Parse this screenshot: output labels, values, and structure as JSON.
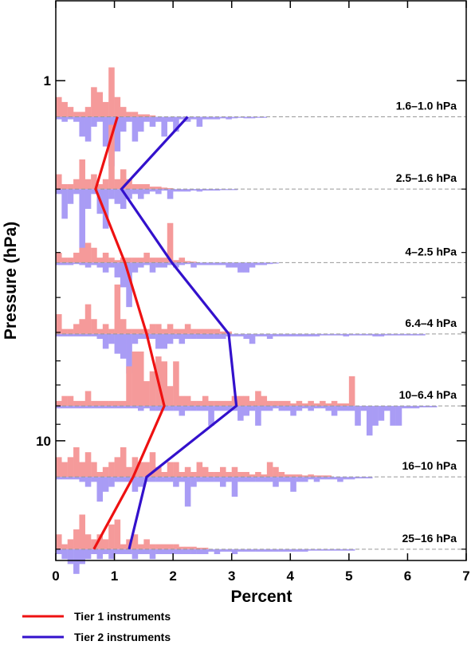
{
  "chart_data": {
    "type": "bar",
    "xlabel": "Percent",
    "ylabel": "Pressure (hPa)",
    "xlim": [
      0,
      7
    ],
    "x_ticks": [
      "0",
      "1",
      "2",
      "3",
      "4",
      "5",
      "6",
      "7"
    ],
    "y_scale": "log",
    "ylim": [
      0.6,
      21.5
    ],
    "y_tick_labels": [
      {
        "value": 1,
        "label": "1"
      },
      {
        "value": 10,
        "label": "10"
      }
    ],
    "y_minor_ticks": [
      2,
      3,
      4,
      5,
      6,
      7,
      8,
      9,
      20
    ],
    "grid": false,
    "legend_position": "bottom-left",
    "colors": {
      "tier1_line": "#ee1111",
      "tier2_line": "#3311cc",
      "tier1_hist": "#f59a9a",
      "tier2_hist": "#a99cf5",
      "baseline": "#999999"
    },
    "bands": [
      {
        "label": "1.6–1.0 hPa",
        "level": 1.26,
        "tier1_hist": [
          4,
          3,
          2,
          1,
          1,
          2,
          6,
          5,
          3,
          10,
          4,
          2,
          1,
          1,
          0.5,
          0.5,
          0.3
        ],
        "tier2_hist": [
          0.5,
          1,
          0.5,
          1,
          4,
          5,
          2,
          1,
          6,
          10,
          7,
          3,
          1,
          5,
          3,
          1,
          2,
          1,
          4,
          1,
          3,
          0.5,
          1,
          0.5,
          2,
          0.5,
          0.5,
          0.5,
          0.3,
          0.5,
          0.3,
          0.2,
          0.3,
          0.3,
          0.2,
          0.2
        ]
      },
      {
        "label": "2.5–1.6 hPa",
        "level": 2.0,
        "tier1_hist": [
          3,
          1,
          1,
          2,
          6,
          2,
          3,
          1,
          2,
          13,
          2,
          4,
          2,
          1,
          1,
          1,
          0.5,
          0.5,
          0.3,
          0.2
        ],
        "tier2_hist": [
          1,
          6,
          3,
          1,
          12,
          4,
          1,
          5,
          8,
          2,
          3,
          4,
          2,
          1,
          2,
          1,
          0.5,
          1,
          0.3,
          2,
          0.5,
          0.5,
          0.5,
          0.3,
          0.5,
          0.3,
          0.3,
          0.3,
          0.2,
          0.2,
          0.2
        ]
      },
      {
        "label": "4–2.5 hPa",
        "level": 3.2,
        "tier1_hist": [
          2,
          1,
          1,
          2,
          3,
          4,
          3,
          1,
          2,
          1,
          0.5,
          1,
          1,
          1,
          1,
          2,
          1,
          1,
          1,
          8,
          0.5,
          1,
          0.3,
          0.2
        ],
        "tier2_hist": [
          0.5,
          0.5,
          0.5,
          0.3,
          0.5,
          1,
          0.5,
          1,
          2,
          1,
          3,
          5,
          9,
          2,
          1,
          0.5,
          2,
          1,
          1,
          0.5,
          1,
          0.5,
          0.3,
          1,
          0.5,
          0.5,
          0.5,
          0.5,
          0.5,
          1,
          1,
          2,
          2,
          1,
          0.5,
          0.5,
          0.3,
          0.2
        ]
      },
      {
        "label": "6.4–4 hPa",
        "level": 5.05,
        "tier1_hist": [
          4,
          1,
          1,
          2,
          3,
          6,
          3,
          1,
          2,
          1,
          10,
          3,
          1,
          1,
          1,
          1,
          2,
          2,
          1,
          2,
          1,
          1,
          2,
          1,
          1,
          1,
          1,
          1,
          0.5,
          0.5
        ],
        "tier2_hist": [
          0.5,
          0.5,
          0.5,
          0.5,
          0.5,
          0.5,
          0.5,
          1,
          3,
          2,
          4,
          5,
          8,
          2,
          1,
          1,
          1,
          3,
          3,
          2,
          1,
          2,
          1,
          1,
          1,
          1,
          1,
          1,
          1,
          0.5,
          0.5,
          0.5,
          1,
          2,
          0.5,
          0.5,
          1,
          0.5,
          0.5,
          0.5,
          0.5,
          0.5,
          0.5,
          0.5,
          0.5,
          0.3,
          0.3,
          0.3,
          0.3,
          0.5,
          0.3,
          0.3,
          0.3,
          0.3,
          0.5,
          0.5,
          0.3,
          0.3,
          0.3,
          0.3,
          0.3,
          0.3,
          0.3
        ]
      },
      {
        "label": "10–6.4 hPa",
        "level": 8.0,
        "tier1_hist": [
          1,
          2,
          2,
          1,
          1,
          3,
          1,
          1,
          1,
          1,
          1,
          1,
          8,
          11,
          11,
          5,
          7,
          10,
          9,
          4,
          9,
          2,
          2,
          1,
          1,
          2,
          1,
          1,
          1,
          1,
          2,
          2,
          2,
          1,
          3,
          2,
          1,
          1,
          1,
          1,
          0.5,
          1,
          0.5,
          1,
          0.5,
          1,
          0.5,
          1,
          0.5,
          0.5,
          6
        ],
        "tier2_hist": [
          0.5,
          0.5,
          0.5,
          0.5,
          0.5,
          0.5,
          0.5,
          0.5,
          0.5,
          0.5,
          0.5,
          0.5,
          0.5,
          0.5,
          1,
          0.5,
          1,
          1,
          1,
          1,
          1,
          2,
          1,
          1,
          1,
          1,
          4,
          1,
          1,
          1,
          1,
          3,
          2,
          1,
          4,
          1,
          1,
          0.5,
          1,
          1,
          2,
          1,
          0.5,
          1,
          0.5,
          0.5,
          1,
          2,
          1,
          1,
          1,
          4,
          1,
          6,
          4,
          3,
          1,
          4,
          4,
          0.5,
          0.5,
          0.5,
          0.3,
          0.3,
          0.3
        ]
      },
      {
        "label": "16–10 hPa",
        "level": 12.6,
        "tier1_hist": [
          4,
          3,
          4,
          6,
          3,
          5,
          3,
          1,
          2,
          3,
          4,
          6,
          2,
          4,
          3,
          3,
          5,
          2,
          1,
          3,
          3,
          1,
          2,
          1,
          3,
          2,
          1,
          1,
          2,
          1,
          2,
          1,
          1,
          0.5,
          1,
          0.5,
          3,
          2,
          1,
          0.5,
          0.5,
          0.5,
          0.3,
          0.5,
          0.3,
          0.3,
          0.3
        ],
        "tier2_hist": [
          0.5,
          0.5,
          0.5,
          0.5,
          1,
          2,
          1,
          5,
          3,
          2,
          1,
          1,
          1,
          3,
          2,
          1,
          1,
          1,
          1,
          1,
          2,
          1,
          6,
          2,
          1,
          1,
          1,
          1,
          2,
          1,
          4,
          1,
          1,
          1,
          1,
          1,
          1,
          2,
          1,
          1,
          3,
          1,
          1,
          0.5,
          1,
          0.5,
          0.5,
          0.5,
          1,
          0.5,
          0.5,
          0.3,
          0.3,
          0.3
        ]
      },
      {
        "label": "25–16 hPa",
        "level": 20.0,
        "tier1_hist": [
          3,
          1,
          2,
          4,
          7,
          3,
          2,
          3,
          2,
          5,
          6,
          1,
          2,
          3,
          1,
          2,
          1,
          1,
          1,
          1,
          1,
          0.5,
          0.5,
          0.5,
          0.3,
          0.3
        ],
        "tier2_hist": [
          1,
          2,
          3,
          5,
          3,
          2,
          1,
          2,
          1,
          2,
          1,
          1,
          1,
          2,
          1,
          1,
          2,
          1,
          1,
          1,
          1,
          1,
          1,
          1,
          1,
          1,
          0.5,
          1,
          0.5,
          0.5,
          1,
          0.5,
          0.5,
          0.5,
          0.5,
          0.5,
          0.5,
          0.5,
          0.5,
          0.5,
          0.5,
          0.5,
          0.5,
          0.3,
          0.3,
          0.3,
          0.3,
          0.3,
          0.3,
          0.3,
          0.3
        ]
      }
    ],
    "series": [
      {
        "name": "Tier 1 instruments",
        "points": [
          {
            "x": 1.05,
            "y": 1.26
          },
          {
            "x": 0.68,
            "y": 2.0
          },
          {
            "x": 1.18,
            "y": 3.2
          },
          {
            "x": 1.55,
            "y": 5.05
          },
          {
            "x": 1.85,
            "y": 8.0
          },
          {
            "x": 1.32,
            "y": 12.6
          },
          {
            "x": 0.65,
            "y": 20.0
          }
        ]
      },
      {
        "name": "Tier 2 instruments",
        "points": [
          {
            "x": 2.25,
            "y": 1.26
          },
          {
            "x": 1.12,
            "y": 2.0
          },
          {
            "x": 1.98,
            "y": 3.2
          },
          {
            "x": 2.95,
            "y": 5.05
          },
          {
            "x": 3.08,
            "y": 8.0
          },
          {
            "x": 1.55,
            "y": 12.6
          },
          {
            "x": 1.25,
            "y": 20.0
          }
        ]
      }
    ]
  }
}
